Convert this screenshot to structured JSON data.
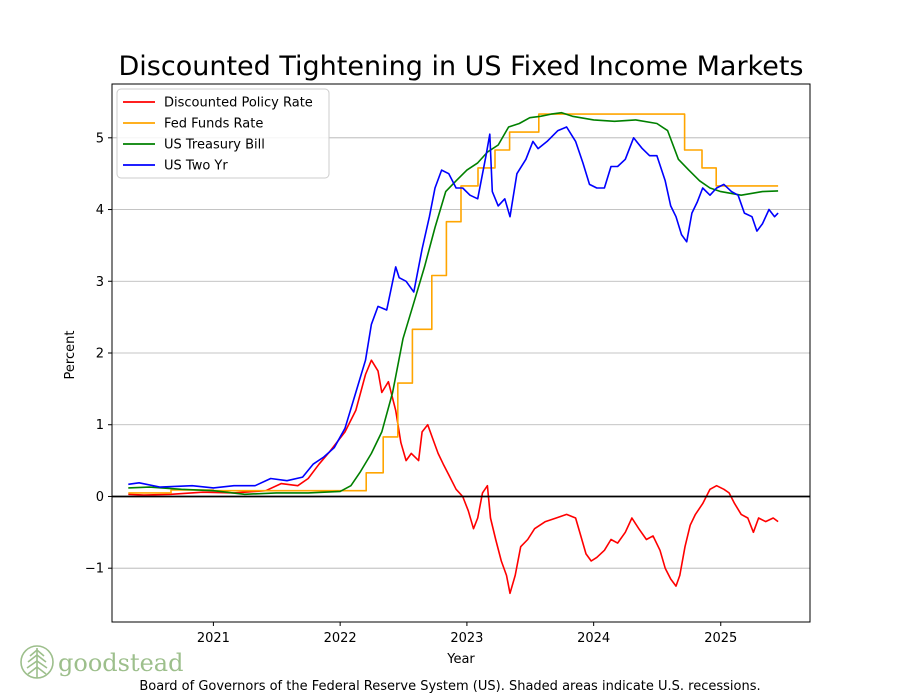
{
  "chart_data": {
    "type": "line",
    "title": "Discounted Tightening in US Fixed Income Markets",
    "xlabel": "Year",
    "ylabel": "Percent",
    "xlim": [
      "2020-03-15",
      "2025-09-15"
    ],
    "ylim": [
      -1.75,
      5.75
    ],
    "x_ticks": [
      "2021",
      "2022",
      "2023",
      "2024",
      "2025"
    ],
    "y_ticks": [
      -1,
      0,
      1,
      2,
      3,
      4,
      5
    ],
    "grid": "horizontal",
    "legend_position": "upper-left",
    "zero_line": true,
    "series": [
      {
        "name": "Discounted Policy Rate",
        "color": "#ff0000",
        "points": [
          [
            "2020-05-01",
            0.03
          ],
          [
            "2020-06-15",
            0.02
          ],
          [
            "2020-09-01",
            0.03
          ],
          [
            "2020-12-01",
            0.06
          ],
          [
            "2021-03-01",
            0.05
          ],
          [
            "2021-06-01",
            0.08
          ],
          [
            "2021-07-15",
            0.18
          ],
          [
            "2021-09-01",
            0.15
          ],
          [
            "2021-10-01",
            0.25
          ],
          [
            "2021-11-01",
            0.45
          ],
          [
            "2021-12-01",
            0.62
          ],
          [
            "2022-01-15",
            0.9
          ],
          [
            "2022-02-15",
            1.2
          ],
          [
            "2022-03-15",
            1.7
          ],
          [
            "2022-04-01",
            1.9
          ],
          [
            "2022-04-20",
            1.75
          ],
          [
            "2022-05-01",
            1.45
          ],
          [
            "2022-05-20",
            1.6
          ],
          [
            "2022-06-10",
            1.2
          ],
          [
            "2022-06-25",
            0.75
          ],
          [
            "2022-07-10",
            0.5
          ],
          [
            "2022-07-25",
            0.6
          ],
          [
            "2022-08-15",
            0.5
          ],
          [
            "2022-08-25",
            0.9
          ],
          [
            "2022-09-10",
            1.0
          ],
          [
            "2022-09-25",
            0.8
          ],
          [
            "2022-10-10",
            0.6
          ],
          [
            "2022-10-25",
            0.45
          ],
          [
            "2022-11-10",
            0.3
          ],
          [
            "2022-12-01",
            0.1
          ],
          [
            "2022-12-20",
            0.0
          ],
          [
            "2023-01-05",
            -0.2
          ],
          [
            "2023-01-20",
            -0.45
          ],
          [
            "2023-02-01",
            -0.3
          ],
          [
            "2023-02-15",
            0.05
          ],
          [
            "2023-03-01",
            0.15
          ],
          [
            "2023-03-10",
            -0.3
          ],
          [
            "2023-03-25",
            -0.6
          ],
          [
            "2023-04-10",
            -0.9
          ],
          [
            "2023-04-25",
            -1.1
          ],
          [
            "2023-05-05",
            -1.35
          ],
          [
            "2023-05-20",
            -1.1
          ],
          [
            "2023-06-05",
            -0.7
          ],
          [
            "2023-06-25",
            -0.6
          ],
          [
            "2023-07-15",
            -0.45
          ],
          [
            "2023-08-15",
            -0.35
          ],
          [
            "2023-09-15",
            -0.3
          ],
          [
            "2023-10-15",
            -0.25
          ],
          [
            "2023-11-10",
            -0.3
          ],
          [
            "2023-11-25",
            -0.55
          ],
          [
            "2023-12-10",
            -0.8
          ],
          [
            "2023-12-25",
            -0.9
          ],
          [
            "2024-01-10",
            -0.85
          ],
          [
            "2024-02-01",
            -0.75
          ],
          [
            "2024-02-20",
            -0.6
          ],
          [
            "2024-03-10",
            -0.65
          ],
          [
            "2024-04-01",
            -0.5
          ],
          [
            "2024-04-20",
            -0.3
          ],
          [
            "2024-05-10",
            -0.45
          ],
          [
            "2024-06-01",
            -0.6
          ],
          [
            "2024-06-20",
            -0.55
          ],
          [
            "2024-07-10",
            -0.75
          ],
          [
            "2024-07-25",
            -1.0
          ],
          [
            "2024-08-10",
            -1.15
          ],
          [
            "2024-08-25",
            -1.25
          ],
          [
            "2024-09-05",
            -1.1
          ],
          [
            "2024-09-20",
            -0.7
          ],
          [
            "2024-10-05",
            -0.4
          ],
          [
            "2024-10-20",
            -0.25
          ],
          [
            "2024-11-10",
            -0.1
          ],
          [
            "2024-12-01",
            0.1
          ],
          [
            "2024-12-20",
            0.15
          ],
          [
            "2025-01-10",
            0.1
          ],
          [
            "2025-01-25",
            0.05
          ],
          [
            "2025-02-10",
            -0.1
          ],
          [
            "2025-03-01",
            -0.25
          ],
          [
            "2025-03-20",
            -0.3
          ],
          [
            "2025-04-05",
            -0.5
          ],
          [
            "2025-04-20",
            -0.3
          ],
          [
            "2025-05-10",
            -0.35
          ],
          [
            "2025-06-01",
            -0.3
          ],
          [
            "2025-06-15",
            -0.35
          ]
        ]
      },
      {
        "name": "Fed Funds Rate",
        "color": "#ffa500",
        "step": true,
        "points": [
          [
            "2020-05-01",
            0.05
          ],
          [
            "2020-09-01",
            0.09
          ],
          [
            "2021-01-01",
            0.08
          ],
          [
            "2021-06-01",
            0.08
          ],
          [
            "2021-10-01",
            0.08
          ],
          [
            "2022-03-17",
            0.33
          ],
          [
            "2022-05-05",
            0.83
          ],
          [
            "2022-06-16",
            1.58
          ],
          [
            "2022-07-28",
            2.33
          ],
          [
            "2022-09-22",
            3.08
          ],
          [
            "2022-11-03",
            3.83
          ],
          [
            "2022-12-15",
            4.33
          ],
          [
            "2023-02-02",
            4.58
          ],
          [
            "2023-03-23",
            4.83
          ],
          [
            "2023-05-04",
            5.08
          ],
          [
            "2023-07-27",
            5.33
          ],
          [
            "2024-09-19",
            4.83
          ],
          [
            "2024-11-08",
            4.58
          ],
          [
            "2024-12-19",
            4.33
          ],
          [
            "2025-06-15",
            4.33
          ]
        ]
      },
      {
        "name": "US Treasury Bill",
        "color": "#008000",
        "points": [
          [
            "2020-05-01",
            0.12
          ],
          [
            "2020-07-01",
            0.13
          ],
          [
            "2020-10-01",
            0.1
          ],
          [
            "2021-01-01",
            0.08
          ],
          [
            "2021-04-01",
            0.03
          ],
          [
            "2021-07-01",
            0.05
          ],
          [
            "2021-10-01",
            0.05
          ],
          [
            "2022-01-01",
            0.07
          ],
          [
            "2022-02-01",
            0.15
          ],
          [
            "2022-03-01",
            0.35
          ],
          [
            "2022-04-01",
            0.6
          ],
          [
            "2022-05-01",
            0.9
          ],
          [
            "2022-06-01",
            1.45
          ],
          [
            "2022-07-01",
            2.2
          ],
          [
            "2022-08-01",
            2.7
          ],
          [
            "2022-09-01",
            3.2
          ],
          [
            "2022-10-01",
            3.75
          ],
          [
            "2022-11-01",
            4.25
          ],
          [
            "2022-12-01",
            4.4
          ],
          [
            "2023-01-01",
            4.55
          ],
          [
            "2023-02-01",
            4.65
          ],
          [
            "2023-03-01",
            4.8
          ],
          [
            "2023-04-01",
            4.9
          ],
          [
            "2023-05-01",
            5.15
          ],
          [
            "2023-06-01",
            5.2
          ],
          [
            "2023-07-01",
            5.28
          ],
          [
            "2023-08-01",
            5.3
          ],
          [
            "2023-09-01",
            5.33
          ],
          [
            "2023-10-01",
            5.35
          ],
          [
            "2023-11-01",
            5.3
          ],
          [
            "2024-01-01",
            5.25
          ],
          [
            "2024-03-01",
            5.23
          ],
          [
            "2024-05-01",
            5.25
          ],
          [
            "2024-07-01",
            5.2
          ],
          [
            "2024-08-01",
            5.1
          ],
          [
            "2024-09-01",
            4.7
          ],
          [
            "2024-10-01",
            4.55
          ],
          [
            "2024-11-01",
            4.4
          ],
          [
            "2024-12-01",
            4.3
          ],
          [
            "2025-01-01",
            4.25
          ],
          [
            "2025-03-01",
            4.2
          ],
          [
            "2025-05-01",
            4.25
          ],
          [
            "2025-06-15",
            4.26
          ]
        ]
      },
      {
        "name": "US Two Yr",
        "color": "#0000ff",
        "points": [
          [
            "2020-05-01",
            0.17
          ],
          [
            "2020-06-01",
            0.19
          ],
          [
            "2020-08-01",
            0.13
          ],
          [
            "2020-11-01",
            0.15
          ],
          [
            "2021-01-01",
            0.12
          ],
          [
            "2021-03-01",
            0.15
          ],
          [
            "2021-05-01",
            0.15
          ],
          [
            "2021-06-15",
            0.25
          ],
          [
            "2021-08-01",
            0.22
          ],
          [
            "2021-09-15",
            0.27
          ],
          [
            "2021-10-15",
            0.45
          ],
          [
            "2021-11-15",
            0.55
          ],
          [
            "2021-12-15",
            0.68
          ],
          [
            "2022-01-15",
            0.95
          ],
          [
            "2022-02-15",
            1.45
          ],
          [
            "2022-03-15",
            1.9
          ],
          [
            "2022-04-01",
            2.4
          ],
          [
            "2022-04-20",
            2.65
          ],
          [
            "2022-05-15",
            2.6
          ],
          [
            "2022-06-10",
            3.2
          ],
          [
            "2022-06-20",
            3.05
          ],
          [
            "2022-07-10",
            3.0
          ],
          [
            "2022-08-01",
            2.85
          ],
          [
            "2022-08-25",
            3.45
          ],
          [
            "2022-09-15",
            3.9
          ],
          [
            "2022-10-01",
            4.3
          ],
          [
            "2022-10-20",
            4.55
          ],
          [
            "2022-11-10",
            4.5
          ],
          [
            "2022-12-01",
            4.3
          ],
          [
            "2022-12-20",
            4.3
          ],
          [
            "2023-01-10",
            4.2
          ],
          [
            "2023-02-01",
            4.15
          ],
          [
            "2023-02-25",
            4.75
          ],
          [
            "2023-03-08",
            5.05
          ],
          [
            "2023-03-15",
            4.25
          ],
          [
            "2023-04-01",
            4.05
          ],
          [
            "2023-04-20",
            4.15
          ],
          [
            "2023-05-05",
            3.9
          ],
          [
            "2023-05-25",
            4.5
          ],
          [
            "2023-06-20",
            4.7
          ],
          [
            "2023-07-10",
            4.95
          ],
          [
            "2023-07-25",
            4.85
          ],
          [
            "2023-08-20",
            4.95
          ],
          [
            "2023-09-20",
            5.1
          ],
          [
            "2023-10-15",
            5.15
          ],
          [
            "2023-11-10",
            4.95
          ],
          [
            "2023-12-01",
            4.65
          ],
          [
            "2023-12-20",
            4.35
          ],
          [
            "2024-01-10",
            4.3
          ],
          [
            "2024-02-01",
            4.3
          ],
          [
            "2024-02-20",
            4.6
          ],
          [
            "2024-03-10",
            4.6
          ],
          [
            "2024-04-01",
            4.7
          ],
          [
            "2024-04-25",
            5.0
          ],
          [
            "2024-05-20",
            4.85
          ],
          [
            "2024-06-10",
            4.75
          ],
          [
            "2024-07-01",
            4.75
          ],
          [
            "2024-07-25",
            4.4
          ],
          [
            "2024-08-10",
            4.05
          ],
          [
            "2024-08-25",
            3.9
          ],
          [
            "2024-09-10",
            3.65
          ],
          [
            "2024-09-25",
            3.55
          ],
          [
            "2024-10-10",
            3.95
          ],
          [
            "2024-10-25",
            4.1
          ],
          [
            "2024-11-10",
            4.3
          ],
          [
            "2024-12-01",
            4.2
          ],
          [
            "2024-12-20",
            4.3
          ],
          [
            "2025-01-10",
            4.35
          ],
          [
            "2025-02-01",
            4.25
          ],
          [
            "2025-02-20",
            4.2
          ],
          [
            "2025-03-10",
            3.95
          ],
          [
            "2025-04-01",
            3.9
          ],
          [
            "2025-04-15",
            3.7
          ],
          [
            "2025-05-01",
            3.8
          ],
          [
            "2025-05-20",
            4.0
          ],
          [
            "2025-06-05",
            3.9
          ],
          [
            "2025-06-15",
            3.95
          ]
        ]
      }
    ]
  },
  "logo": {
    "text": "goodstead"
  },
  "footer": {
    "text": "Board of Governors of the Federal Reserve System (US). Shaded areas indicate U.S. recessions."
  }
}
